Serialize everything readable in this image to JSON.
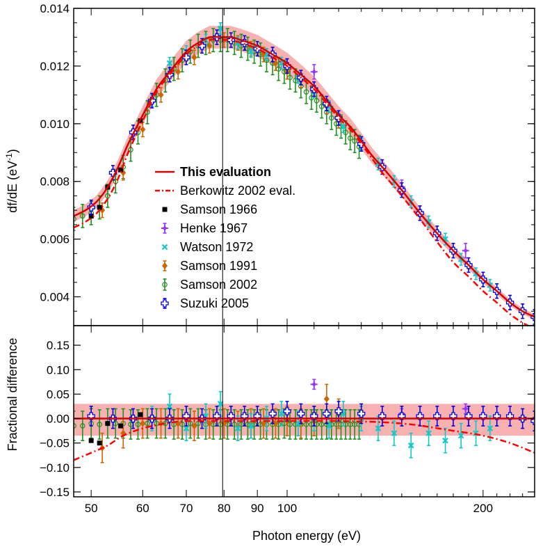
{
  "chart_data": [
    {
      "type": "line",
      "panel": "top",
      "xscale": "log",
      "xlim": [
        47,
        240
      ],
      "ylim": [
        0.003,
        0.014
      ],
      "ylabel_main": "df/dE (eV",
      "ylabel_sup": "-1",
      "ylabel_tail": ")",
      "yticks": [
        0.004,
        0.006,
        0.008,
        0.01,
        0.012,
        0.014
      ],
      "ytick_labels": [
        "0.004",
        "0.006",
        "0.008",
        "0.010",
        "0.012",
        "0.014"
      ],
      "vline_x": 79.6,
      "legend": [
        {
          "label": "This evaluation",
          "style": "solid",
          "color": "#d40000"
        },
        {
          "label": "Berkowitz 2002 eval.",
          "style": "dashdot",
          "color": "#ff0000"
        },
        {
          "label": "Samson 1966",
          "marker": "square",
          "color": "#000000"
        },
        {
          "label": "Henke 1967",
          "marker": "star",
          "color": "#9933ff"
        },
        {
          "label": "Watson 1972",
          "marker": "x",
          "color": "#10c8c8"
        },
        {
          "label": "Samson 1991",
          "marker": "diamond",
          "color": "#cc6600"
        },
        {
          "label": "Samson 2002",
          "marker": "circle",
          "color": "#209020"
        },
        {
          "label": "Suzuki 2005",
          "marker": "cross",
          "color": "#0000dd"
        }
      ],
      "series": [
        {
          "name": "This evaluation",
          "x": [
            47,
            49,
            51,
            53,
            55,
            57,
            60,
            63,
            66,
            70,
            73,
            76,
            79,
            82,
            85,
            90,
            95,
            100,
            105,
            110,
            115,
            120,
            125,
            130,
            135,
            140,
            145,
            150,
            160,
            170,
            180,
            190,
            200,
            210,
            220,
            230,
            240
          ],
          "values": [
            0.0068,
            0.007,
            0.0073,
            0.0078,
            0.0085,
            0.0093,
            0.0103,
            0.0112,
            0.0118,
            0.0125,
            0.0128,
            0.013,
            0.013,
            0.013,
            0.0129,
            0.0127,
            0.0124,
            0.0121,
            0.0117,
            0.0113,
            0.0108,
            0.0103,
            0.0099,
            0.0094,
            0.0089,
            0.0085,
            0.0081,
            0.0077,
            0.0069,
            0.0062,
            0.0056,
            0.0051,
            0.0046,
            0.0042,
            0.0038,
            0.0035,
            0.0033
          ]
        },
        {
          "name": "Berkowitz 2002 eval.",
          "x": [
            47,
            49,
            51,
            53,
            55,
            57,
            60,
            63,
            66,
            70,
            73,
            76,
            79,
            82,
            85,
            90,
            95,
            100,
            105,
            110,
            115,
            120,
            125,
            130,
            135,
            140,
            145,
            150,
            160,
            170,
            180,
            190,
            200,
            210,
            220,
            230,
            240
          ],
          "values": [
            0.0064,
            0.0066,
            0.0069,
            0.0074,
            0.0081,
            0.009,
            0.0101,
            0.0111,
            0.0117,
            0.0124,
            0.0127,
            0.0129,
            0.0129,
            0.0129,
            0.0128,
            0.0126,
            0.0123,
            0.012,
            0.0116,
            0.0112,
            0.0107,
            0.0102,
            0.0098,
            0.0093,
            0.0088,
            0.0083,
            0.0079,
            0.0075,
            0.0067,
            0.0059,
            0.0052,
            0.0047,
            0.0042,
            0.0038,
            0.0034,
            0.0031,
            0.0029
          ]
        },
        {
          "name": "Samson 1966",
          "x": [
            50,
            51.5,
            53,
            55.5,
            59.5
          ],
          "values": [
            0.0068,
            0.0071,
            0.0078,
            0.0084,
            0.0101
          ]
        },
        {
          "name": "Henke 1967",
          "x": [
            110,
            150,
            188
          ],
          "values": [
            0.0118,
            0.0078,
            0.0056
          ]
        },
        {
          "name": "Watson 1972",
          "x": [
            62,
            66,
            70,
            75,
            79,
            84,
            88,
            93,
            98,
            104,
            110,
            116,
            122,
            130,
            138,
            146,
            155,
            165,
            175,
            185,
            195,
            205
          ],
          "values": [
            0.0108,
            0.0121,
            0.0125,
            0.0129,
            0.0133,
            0.0128,
            0.0125,
            0.0124,
            0.0121,
            0.0116,
            0.0111,
            0.0106,
            0.0099,
            0.0093,
            0.0086,
            0.008,
            0.0073,
            0.0066,
            0.006,
            0.0053,
            0.0048,
            0.0044
          ]
        },
        {
          "name": "Samson 1991",
          "x": [
            52,
            56,
            60,
            64,
            68,
            72,
            76,
            80,
            84,
            88,
            92,
            96,
            100,
            105,
            110,
            115,
            120
          ],
          "values": [
            0.007,
            0.0083,
            0.0098,
            0.011,
            0.0118,
            0.0123,
            0.0127,
            0.0129,
            0.0128,
            0.0126,
            0.0124,
            0.0121,
            0.0118,
            0.0115,
            0.0112,
            0.0106,
            0.0101
          ]
        },
        {
          "name": "Samson 2002",
          "x": [
            47,
            48.5,
            50,
            51.5,
            53,
            54.5,
            56,
            57.5,
            59,
            61,
            63,
            65,
            67,
            69,
            71,
            73,
            75,
            77,
            79,
            81,
            83,
            85,
            87,
            89,
            91,
            93,
            95,
            97,
            99,
            101,
            103,
            105,
            107,
            109,
            111,
            113,
            115,
            117,
            119,
            121,
            123,
            125,
            127,
            129
          ],
          "values": [
            0.0067,
            0.0068,
            0.0069,
            0.0071,
            0.0075,
            0.008,
            0.0085,
            0.0091,
            0.0097,
            0.0104,
            0.011,
            0.0115,
            0.0119,
            0.0122,
            0.0125,
            0.0127,
            0.0128,
            0.0129,
            0.0129,
            0.0129,
            0.0128,
            0.0127,
            0.0126,
            0.0125,
            0.0124,
            0.0122,
            0.0121,
            0.0119,
            0.0118,
            0.0116,
            0.0115,
            0.0113,
            0.0111,
            0.0109,
            0.0108,
            0.0106,
            0.0104,
            0.0102,
            0.01,
            0.0099,
            0.0097,
            0.0095,
            0.0094,
            0.0092
          ]
        },
        {
          "name": "Suzuki 2005",
          "x": [
            50,
            54,
            58,
            62,
            66,
            70,
            74,
            78,
            82,
            86,
            90,
            95,
            100,
            105,
            110,
            115,
            120,
            130,
            140,
            150,
            160,
            170,
            180,
            190,
            200,
            210,
            220,
            230,
            240
          ],
          "values": [
            0.0071,
            0.0083,
            0.0097,
            0.0108,
            0.0117,
            0.0123,
            0.0127,
            0.013,
            0.0129,
            0.0128,
            0.0126,
            0.0124,
            0.012,
            0.0116,
            0.0112,
            0.0107,
            0.0102,
            0.0093,
            0.0085,
            0.0077,
            0.0069,
            0.0062,
            0.0056,
            0.0051,
            0.0046,
            0.0042,
            0.0038,
            0.0035,
            0.0033
          ]
        }
      ]
    },
    {
      "type": "line",
      "panel": "bottom",
      "xscale": "log",
      "xlim": [
        47,
        240
      ],
      "ylim": [
        -0.16,
        0.19
      ],
      "xlabel": "Photon energy (eV)",
      "ylabel": "Fractional difference",
      "xticks": [
        50,
        60,
        70,
        80,
        90,
        100,
        200
      ],
      "xtick_labels": [
        "50",
        "60",
        "70",
        "80",
        "90",
        "100",
        "200"
      ],
      "yticks": [
        -0.15,
        -0.1,
        -0.05,
        0.0,
        0.05,
        0.1,
        0.15
      ],
      "ytick_labels": [
        "−0.15",
        "−0.10",
        "−0.05",
        "0.00",
        "0.05",
        "0.10",
        "0.15"
      ],
      "vline_x": 79.6,
      "uncertainty_band": [
        -0.035,
        0.03
      ],
      "series": [
        {
          "name": "This evaluation",
          "x": [
            47,
            240
          ],
          "values": [
            0,
            0
          ]
        },
        {
          "name": "Berkowitz 2002 eval.",
          "x": [
            47,
            50,
            53,
            56,
            60,
            65,
            70,
            80,
            90,
            100,
            120,
            150,
            180,
            200,
            220,
            240
          ],
          "values": [
            -0.085,
            -0.07,
            -0.055,
            -0.035,
            -0.02,
            -0.01,
            -0.005,
            -0.005,
            -0.005,
            -0.005,
            -0.005,
            -0.01,
            -0.025,
            -0.035,
            -0.05,
            -0.07
          ]
        },
        {
          "name": "Samson 1966",
          "x": [
            50,
            51.5,
            53,
            55.5,
            59.5
          ],
          "values": [
            -0.045,
            -0.05,
            -0.01,
            -0.015,
            0.008
          ]
        },
        {
          "name": "Henke 1967",
          "x": [
            110,
            150,
            188
          ],
          "values": [
            0.07,
            0.01,
            0.02
          ]
        },
        {
          "name": "Watson 1972",
          "x": [
            62,
            66,
            70,
            75,
            79,
            84,
            88,
            93,
            98,
            104,
            110,
            116,
            122,
            130,
            138,
            146,
            155,
            165,
            175,
            185,
            195,
            205
          ],
          "values": [
            0.0,
            0.025,
            -0.02,
            0.005,
            0.03,
            -0.02,
            -0.015,
            0.0,
            0.01,
            -0.01,
            0.0,
            -0.015,
            0.01,
            0.0,
            -0.02,
            -0.03,
            -0.055,
            -0.03,
            -0.045,
            -0.035,
            -0.03,
            -0.02
          ]
        },
        {
          "name": "Samson 1991",
          "x": [
            52,
            56,
            60,
            64,
            68,
            72,
            76,
            80,
            84,
            88,
            92,
            96,
            100,
            105,
            110,
            115,
            120
          ],
          "values": [
            -0.06,
            -0.03,
            -0.01,
            -0.01,
            -0.01,
            -0.015,
            -0.01,
            -0.01,
            -0.015,
            -0.01,
            -0.01,
            -0.01,
            -0.005,
            -0.01,
            -0.005,
            0.04,
            0.01
          ]
        },
        {
          "name": "Samson 2002",
          "x": [
            47,
            48.5,
            50,
            51.5,
            53,
            54.5,
            56,
            57.5,
            59,
            61,
            63,
            65,
            67,
            69,
            71,
            73,
            75,
            77,
            79,
            81,
            83,
            85,
            87,
            89,
            91,
            93,
            95,
            97,
            99,
            101,
            103,
            105,
            107,
            109,
            111,
            113,
            115,
            117,
            119,
            121,
            123,
            125,
            127,
            129
          ],
          "values": [
            -0.015,
            -0.015,
            -0.01,
            -0.012,
            -0.01,
            -0.01,
            -0.01,
            -0.012,
            -0.012,
            -0.01,
            -0.01,
            -0.01,
            -0.012,
            -0.012,
            -0.01,
            -0.01,
            -0.012,
            -0.012,
            -0.012,
            -0.012,
            -0.012,
            -0.012,
            -0.012,
            -0.012,
            -0.012,
            -0.012,
            -0.012,
            -0.012,
            -0.01,
            -0.012,
            -0.012,
            -0.012,
            -0.012,
            -0.012,
            -0.012,
            -0.012,
            -0.012,
            -0.012,
            -0.012,
            -0.012,
            -0.012,
            -0.012,
            -0.012,
            -0.012
          ]
        },
        {
          "name": "Suzuki 2005",
          "x": [
            50,
            54,
            58,
            62,
            66,
            70,
            74,
            78,
            82,
            86,
            90,
            95,
            100,
            105,
            110,
            115,
            120,
            130,
            140,
            150,
            160,
            170,
            180,
            190,
            200,
            210,
            220,
            230,
            240
          ],
          "values": [
            0.005,
            0.0,
            0.0,
            0.0,
            0.0,
            0.005,
            0.0,
            0.005,
            0.005,
            0.005,
            0.005,
            0.01,
            0.015,
            0.01,
            0.005,
            0.01,
            0.015,
            0.01,
            0.005,
            0.005,
            0.005,
            0.005,
            0.005,
            0.005,
            0.005,
            0.005,
            0.005,
            0.0,
            -0.005
          ]
        }
      ]
    }
  ]
}
